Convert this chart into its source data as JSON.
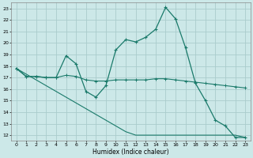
{
  "background_color": "#cce8e8",
  "grid_color": "#aacccc",
  "line_color": "#1a7a6a",
  "x_label": "Humidex (Indice chaleur)",
  "xlim": [
    -0.5,
    23.5
  ],
  "ylim": [
    11.5,
    23.5
  ],
  "yticks": [
    12,
    13,
    14,
    15,
    16,
    17,
    18,
    19,
    20,
    21,
    22,
    23
  ],
  "xticks": [
    0,
    1,
    2,
    3,
    4,
    5,
    6,
    7,
    8,
    9,
    10,
    11,
    12,
    13,
    14,
    15,
    16,
    17,
    18,
    19,
    20,
    21,
    22,
    23
  ],
  "line1_x": [
    0,
    1,
    2,
    3,
    4,
    5,
    6,
    7,
    8,
    9,
    10,
    11,
    12,
    13,
    14,
    15,
    16,
    17,
    18,
    19,
    20,
    21,
    22,
    23
  ],
  "line1_y": [
    17.8,
    17.1,
    17.1,
    17.0,
    17.0,
    18.9,
    18.2,
    15.8,
    15.3,
    16.3,
    19.4,
    20.3,
    20.1,
    20.5,
    21.2,
    23.1,
    22.1,
    19.6,
    16.5,
    15.0,
    13.3,
    12.8,
    11.8,
    11.8
  ],
  "line2_x": [
    0,
    1,
    2,
    3,
    4,
    5,
    6,
    7,
    8,
    9,
    10,
    11,
    12,
    13,
    14,
    15,
    16,
    17,
    18,
    19,
    20,
    21,
    22,
    23
  ],
  "line2_y": [
    17.8,
    17.1,
    17.1,
    17.0,
    17.0,
    17.2,
    17.1,
    16.8,
    16.7,
    16.7,
    16.8,
    16.8,
    16.8,
    16.8,
    16.9,
    16.9,
    16.8,
    16.7,
    16.6,
    16.5,
    16.4,
    16.3,
    16.2,
    16.1
  ],
  "line3_x": [
    0,
    1,
    2,
    3,
    4,
    5,
    6,
    7,
    8,
    9,
    10,
    11,
    12,
    13,
    14,
    15,
    16,
    17,
    18,
    19,
    20,
    21,
    22,
    23
  ],
  "line3_y": [
    17.8,
    17.3,
    16.8,
    16.3,
    15.8,
    15.3,
    14.8,
    14.3,
    13.8,
    13.3,
    12.8,
    12.3,
    12.0,
    12.0,
    12.0,
    12.0,
    12.0,
    12.0,
    12.0,
    12.0,
    12.0,
    12.0,
    12.0,
    11.8
  ]
}
